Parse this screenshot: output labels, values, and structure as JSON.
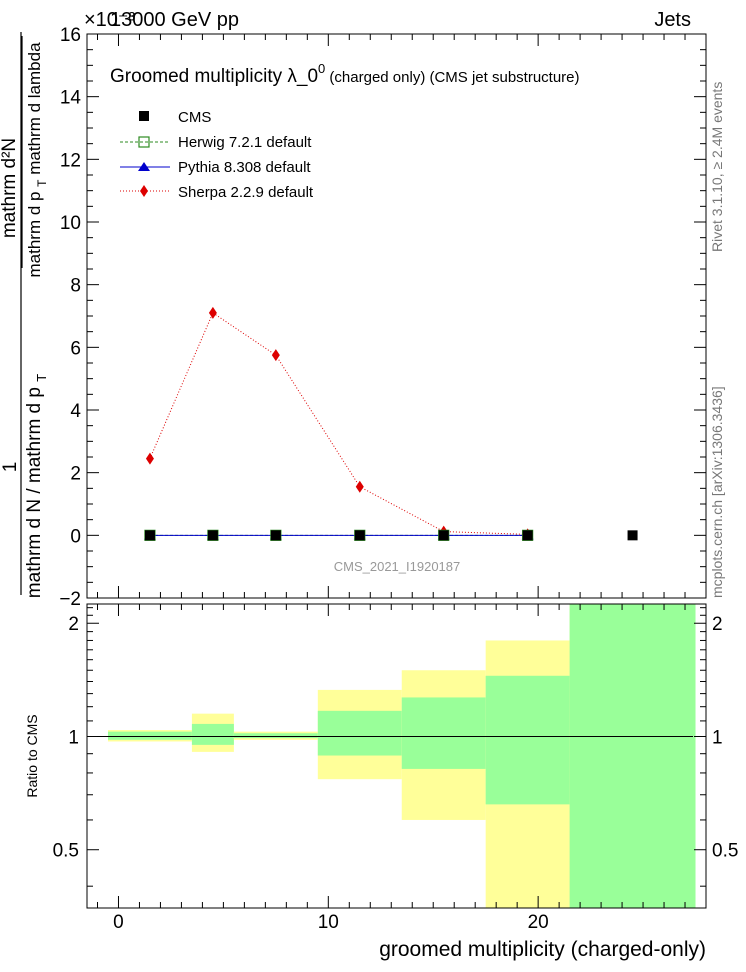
{
  "header": {
    "energy": "13000 GeV pp",
    "process": "Jets",
    "exponent": "×10⁻³"
  },
  "side_text": {
    "rivet": "Rivet 3.1.10, ≥ 2.4M events",
    "mcplots": "mcplots.cern.ch [arXiv:1306.3436]"
  },
  "watermark": "CMS_2021_I1920187",
  "chart_data": [
    {
      "type": "line",
      "title_main": "Groomed multiplicity  λ_0",
      "title_sup": "0",
      "title_rest": " (charged only) (CMS jet substructure)",
      "ylabel_top": "1",
      "ylabel_den": "mathrm d N / mathrm d p ",
      "ylabel_den_sub": "T",
      "ylabel_num": "mathrm d²N",
      "ylabel_num_den": "mathrm d p ",
      "ylabel_num_den_sub": "T",
      "ylabel_num_den_rest": " mathrm d lambda",
      "ylim": [
        -2,
        16
      ],
      "yticks": [
        "−2",
        "0",
        "2",
        "4",
        "6",
        "8",
        "10",
        "12",
        "14",
        "16"
      ],
      "ytick_values": [
        -2,
        0,
        2,
        4,
        6,
        8,
        10,
        12,
        14,
        16
      ],
      "xlim": [
        -1.5,
        28
      ],
      "legend_position": "top-left",
      "series": [
        {
          "name": "CMS",
          "color": "#000000",
          "marker": "square-filled",
          "x": [
            1.5,
            4.5,
            7.5,
            11.5,
            15.5,
            19.5,
            24.5
          ],
          "y": [
            0,
            0,
            0,
            0,
            0,
            0,
            0
          ]
        },
        {
          "name": "Herwig 7.2.1 default",
          "color": "#2e8b22",
          "marker": "square-open",
          "line": "dashed",
          "x": [
            1.5,
            4.5,
            7.5,
            11.5,
            15.5,
            19.5
          ],
          "y": [
            0,
            0,
            0,
            0,
            0,
            0
          ]
        },
        {
          "name": "Pythia 8.308 default",
          "color": "#0000cc",
          "marker": "triangle",
          "line": "solid",
          "x": [
            1.5,
            4.5,
            7.5,
            11.5,
            15.5,
            19.5
          ],
          "y": [
            0,
            0,
            0,
            0,
            0,
            0
          ]
        },
        {
          "name": "Sherpa 2.2.9 default",
          "color": "#dd0000",
          "marker": "diamond",
          "line": "dotted",
          "x": [
            1.5,
            4.5,
            7.5,
            11.5,
            15.5,
            19.5
          ],
          "y": [
            2.45,
            7.1,
            5.75,
            1.55,
            0.12,
            0.03
          ]
        }
      ]
    },
    {
      "type": "area",
      "ylabel": "Ratio to CMS",
      "xlabel": "groomed multiplicity (charged-only)",
      "xlim": [
        -1.5,
        28
      ],
      "ylim": [
        0.35,
        2.25
      ],
      "xticks": [
        "0",
        "10",
        "20"
      ],
      "xtick_values": [
        0,
        10,
        20
      ],
      "yticks": [
        "0.5",
        "1",
        "2"
      ],
      "ytick_values": [
        0.5,
        1,
        2
      ],
      "reference_line": 1,
      "bands": [
        {
          "x0": -0.5,
          "x1": 3.5,
          "yellow": [
            0.97,
            1.04
          ],
          "green": [
            0.98,
            1.03
          ]
        },
        {
          "x0": 3.5,
          "x1": 5.5,
          "yellow": [
            0.91,
            1.15
          ],
          "green": [
            0.95,
            1.08
          ]
        },
        {
          "x0": 5.5,
          "x1": 9.5,
          "yellow": [
            0.98,
            1.03
          ],
          "green": [
            0.99,
            1.02
          ]
        },
        {
          "x0": 9.5,
          "x1": 13.5,
          "yellow": [
            0.77,
            1.33
          ],
          "green": [
            0.89,
            1.17
          ]
        },
        {
          "x0": 13.5,
          "x1": 17.5,
          "yellow": [
            0.6,
            1.5
          ],
          "green": [
            0.82,
            1.27
          ]
        },
        {
          "x0": 17.5,
          "x1": 21.5,
          "yellow": [
            0.35,
            1.8
          ],
          "green": [
            0.66,
            1.45
          ]
        },
        {
          "x0": 21.5,
          "x1": 27.5,
          "yellow": [
            0.35,
            2.25
          ],
          "green": [
            0.35,
            2.25
          ]
        }
      ],
      "band_colors": {
        "yellow": "#ffff99",
        "green": "#99ff99"
      }
    }
  ]
}
